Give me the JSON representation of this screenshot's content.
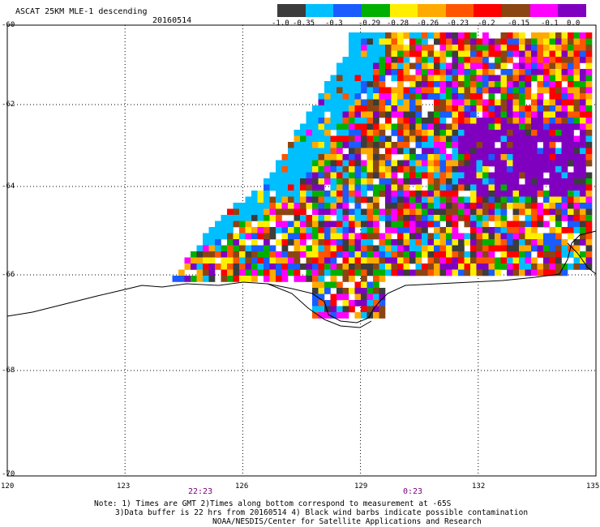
{
  "header": {
    "title": "ASCAT 25KM MLE-1 descending",
    "date": "20160514"
  },
  "legend": {
    "labels": [
      "-1.0",
      "-0.35",
      "-0.3",
      "-0.29",
      "-0.28",
      "-0.26",
      "-0.23",
      "-0.2",
      "-0.15",
      "-0.1",
      "0.0"
    ],
    "colors": [
      "#3c3c3c",
      "#00bfff",
      "#1a5cff",
      "#00b000",
      "#ffee00",
      "#ffaa00",
      "#ff5500",
      "#ff0000",
      "#8b4513",
      "#ff00ff",
      "#8000c0"
    ]
  },
  "axes": {
    "lat_labels": [
      "-60",
      "-62",
      "-64",
      "-66",
      "-68",
      "-70"
    ],
    "lat_values": [
      -60,
      -62,
      -64,
      -66,
      -68,
      -70
    ],
    "lon_labels": [
      "120",
      "123",
      "126",
      "129",
      "132",
      "135"
    ],
    "lon_values": [
      120,
      123,
      126,
      129,
      132,
      135
    ]
  },
  "times": {
    "color": "#800080",
    "items": [
      {
        "label": "22:23",
        "lon": 124.8
      },
      {
        "label": "0:23",
        "lon": 130.4
      }
    ]
  },
  "notes": [
    "Note: 1) Times are GMT 2)Times along bottom correspond to measurement at -65S",
    "3)Data buffer is 22 hrs from 20160514 4) Black wind barbs indicate possible contamination",
    "NOAA/NESDIS/Center for Satellite Applications and Research"
  ]
}
